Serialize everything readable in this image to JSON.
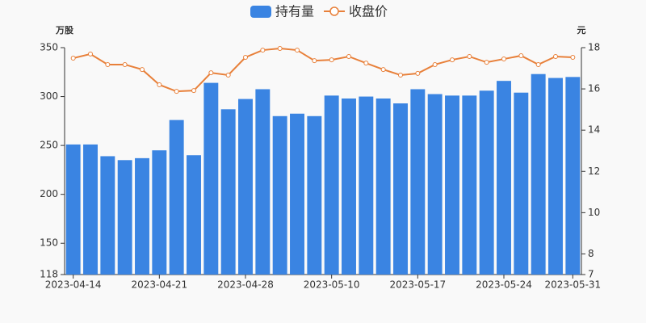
{
  "chart_data": {
    "type": "bar_line",
    "categories": [
      "2023-04-14",
      null,
      null,
      null,
      null,
      "2023-04-21",
      null,
      null,
      null,
      null,
      "2023-04-28",
      null,
      null,
      null,
      null,
      "2023-05-10",
      null,
      null,
      null,
      null,
      "2023-05-17",
      null,
      null,
      null,
      null,
      "2023-05-24",
      null,
      null,
      null,
      "2023-05-31"
    ],
    "series": [
      {
        "name": "持有量",
        "color": "#3a84e2",
        "type": "bar",
        "values": [
          251,
          251,
          239,
          235,
          237,
          245,
          276,
          240,
          314,
          287,
          297.5,
          307.5,
          280,
          282.5,
          280,
          301,
          298,
          300,
          298,
          293,
          307.5,
          302.5,
          301,
          301,
          306,
          316,
          304,
          323,
          319,
          320
        ]
      },
      {
        "name": "收盘价",
        "color": "#e8803a",
        "type": "line",
        "axis": "y2",
        "values": [
          17.49,
          17.69,
          17.18,
          17.18,
          16.94,
          16.2,
          15.88,
          15.92,
          16.78,
          16.67,
          17.53,
          17.88,
          17.96,
          17.88,
          17.37,
          17.41,
          17.57,
          17.25,
          16.94,
          16.67,
          16.75,
          17.18,
          17.41,
          17.57,
          17.29,
          17.45,
          17.61,
          17.18,
          17.57,
          17.53
        ]
      }
    ],
    "y_label": "万股",
    "y2_label": "元",
    "ylim": [
      118,
      350
    ],
    "yticks": [
      118,
      150,
      200,
      250,
      300,
      350
    ],
    "y2lim": [
      7,
      18
    ],
    "y2ticks": [
      7,
      8,
      10,
      12,
      14,
      16,
      18
    ],
    "legend": "top",
    "grid": false
  }
}
